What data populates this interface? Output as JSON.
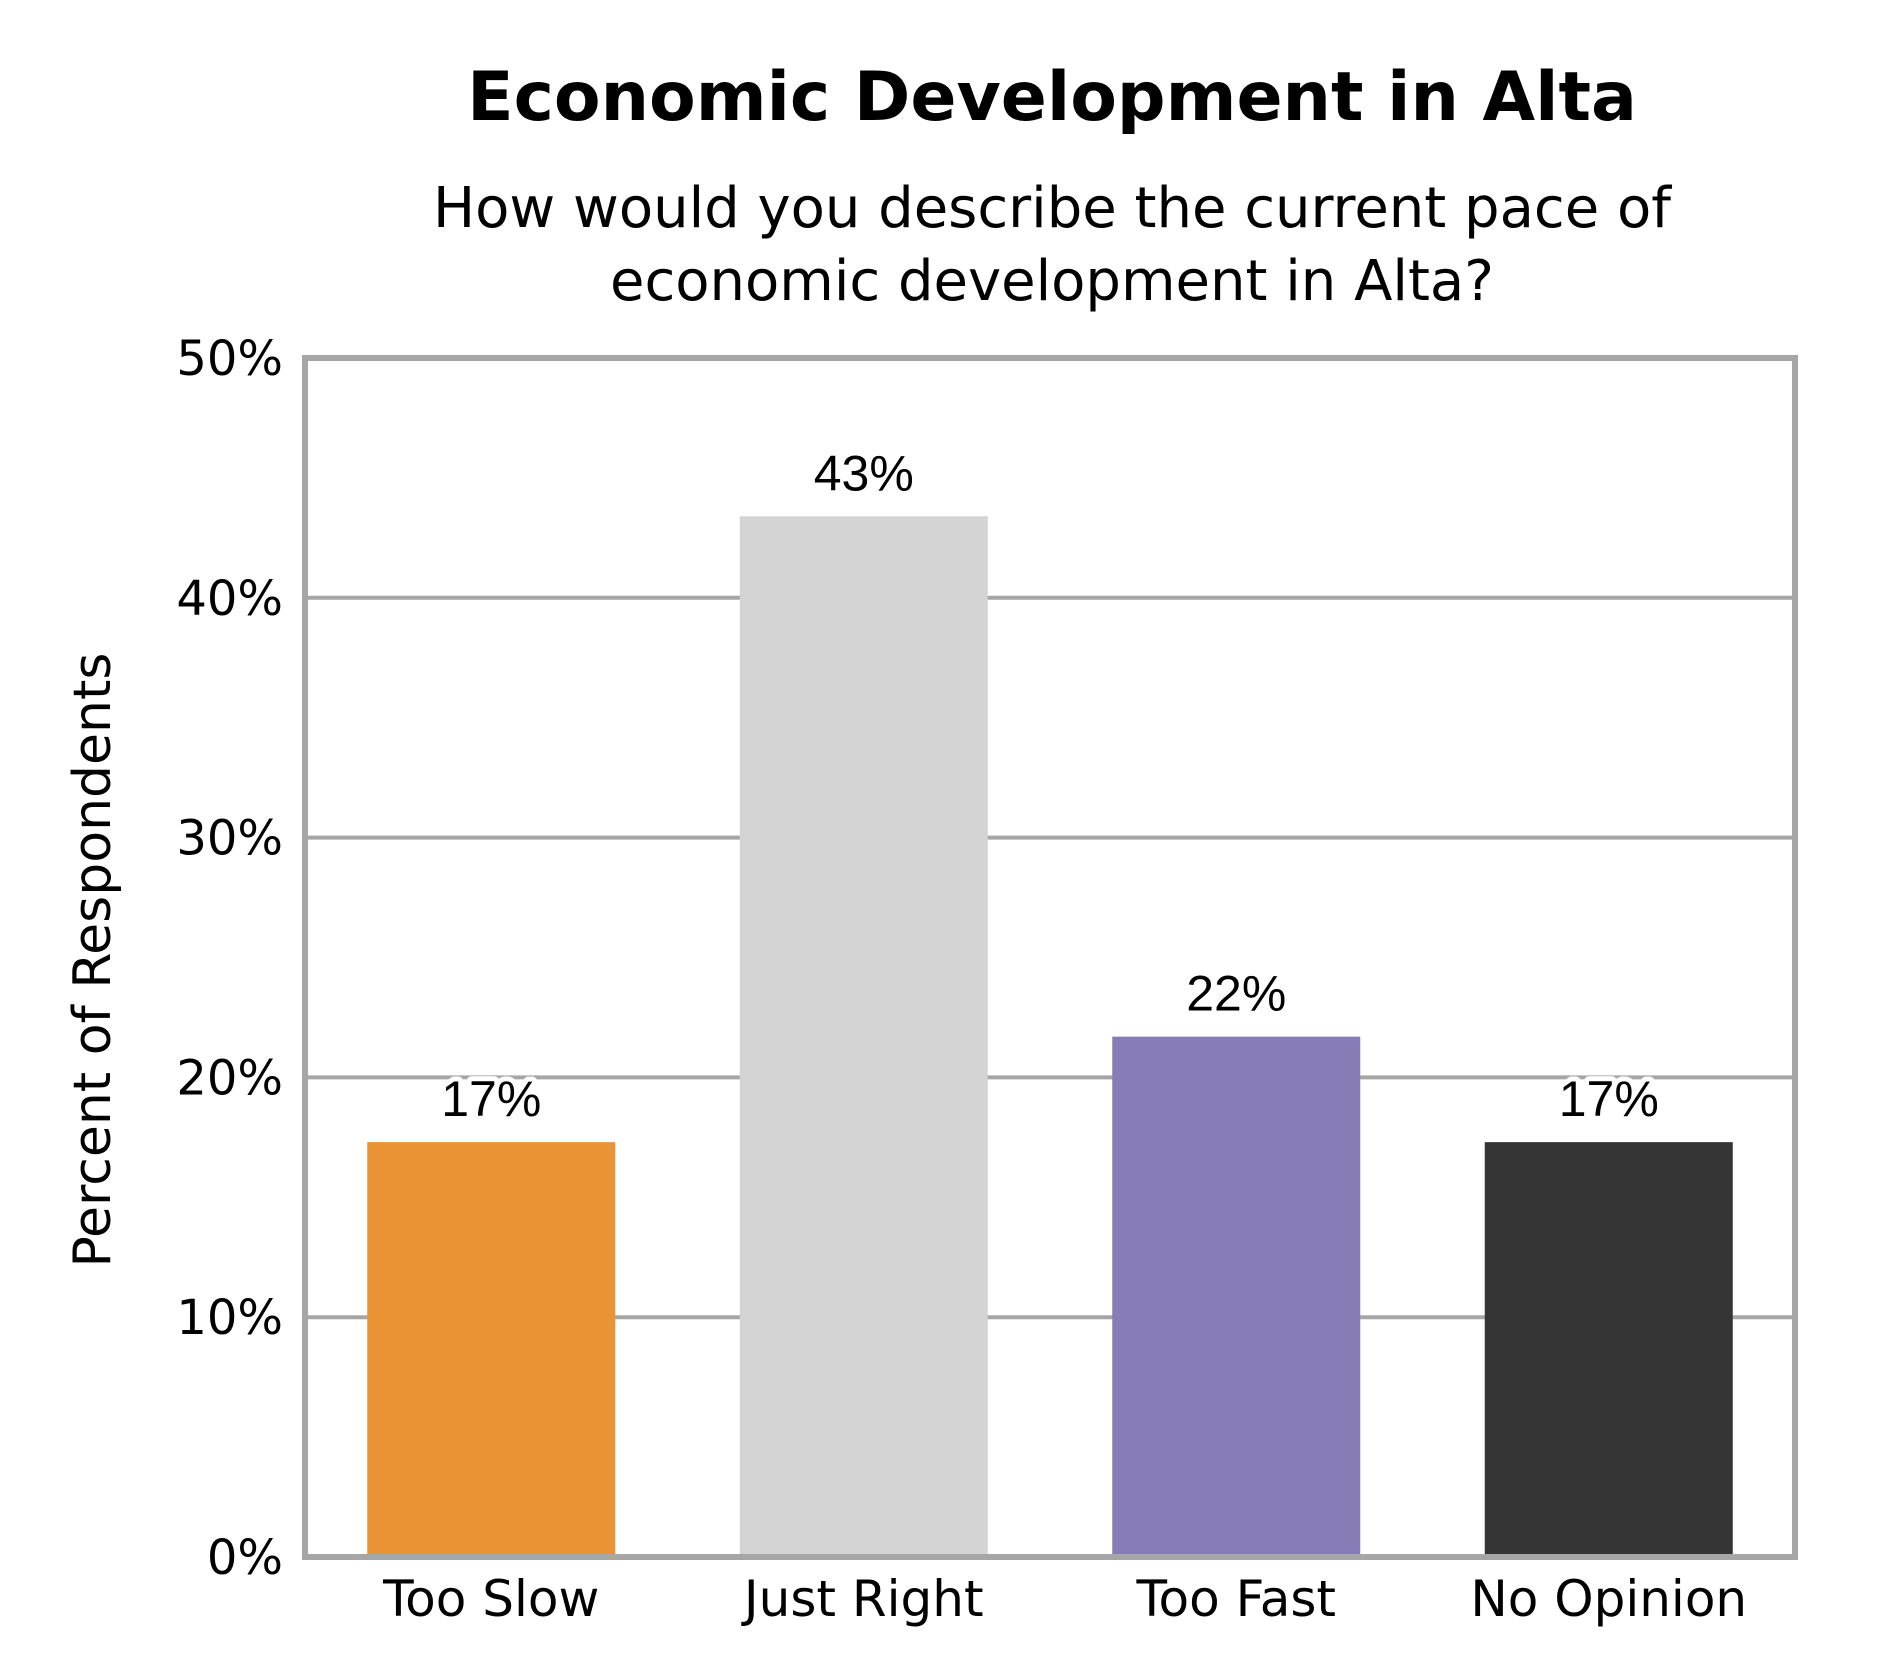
{
  "chart_data": {
    "type": "bar",
    "title": "Economic Development in Alta",
    "subtitle_lines": [
      "How would you describe the current pace of",
      "economic development in Alta?"
    ],
    "ylabel": "Percent of Respondents",
    "xlabel": "",
    "categories": [
      "Too Slow",
      "Just Right",
      "Too Fast",
      "No Opinion"
    ],
    "values": [
      17.3,
      43.4,
      21.7,
      17.3
    ],
    "data_labels": [
      "17%",
      "43%",
      "22%",
      "17%"
    ],
    "colors": [
      "#EA9335",
      "#D4D4D4",
      "#877CB5",
      "#353535"
    ],
    "ylim": [
      0,
      50
    ],
    "yticks": [
      0,
      10,
      20,
      30,
      40,
      50
    ],
    "ytick_labels": [
      "0%",
      "10%",
      "20%",
      "30%",
      "40%",
      "50%"
    ],
    "grid": true,
    "legend": "none"
  }
}
